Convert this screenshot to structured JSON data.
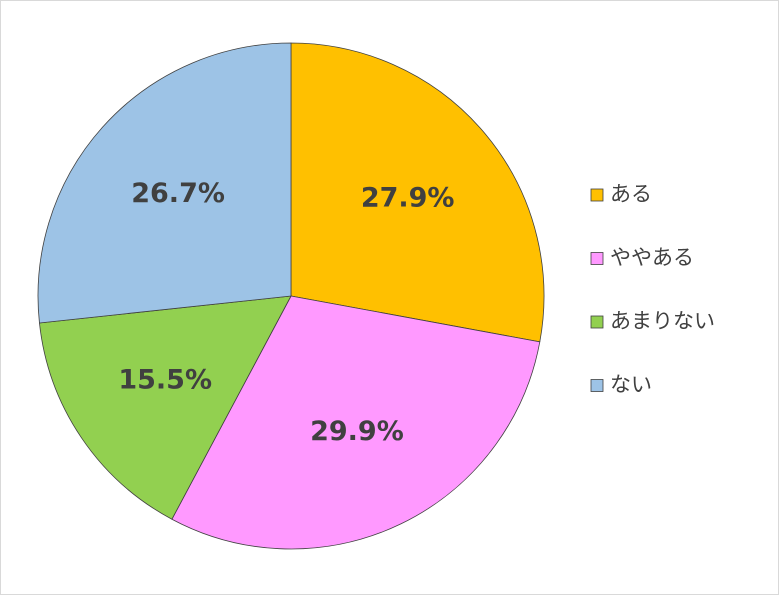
{
  "chart_data": {
    "type": "pie",
    "categories": [
      "ある",
      "ややある",
      "あまりない",
      "ない"
    ],
    "values": [
      27.9,
      29.9,
      15.5,
      26.7
    ],
    "value_labels": [
      "27.9%",
      "29.9%",
      "15.5%",
      "26.7%"
    ],
    "colors": [
      "#FFC000",
      "#FF99FF",
      "#92D050",
      "#9DC3E6"
    ],
    "legend": "right"
  }
}
